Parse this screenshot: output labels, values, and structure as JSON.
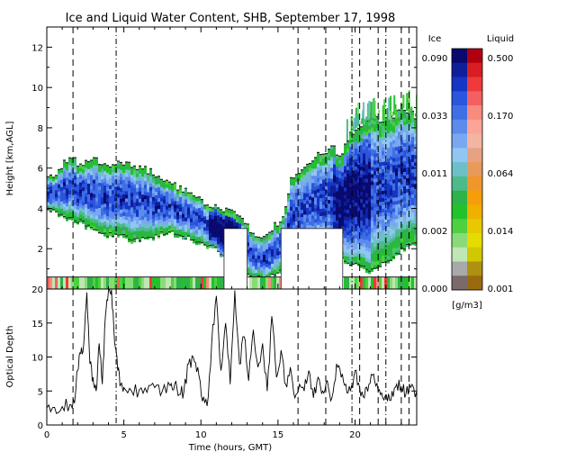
{
  "chart_data": [
    {
      "type": "heatmap",
      "title": "Ice and Liquid Water Content, SHB, September 17, 1998",
      "xlabel": "",
      "ylabel": "Height [km,AGL]",
      "xlim": [
        0,
        24
      ],
      "ylim": [
        0,
        13
      ],
      "x_ticks": [
        0,
        5,
        10,
        15,
        20
      ],
      "y_ticks": [
        2,
        4,
        6,
        8,
        10,
        12
      ],
      "cloud_top_km": [
        [
          0,
          5.5
        ],
        [
          0.5,
          5.6
        ],
        [
          1,
          6.2
        ],
        [
          1.5,
          6.5
        ],
        [
          2,
          6.2
        ],
        [
          3,
          6.4
        ],
        [
          4,
          6.2
        ],
        [
          5,
          6.2
        ],
        [
          6,
          6.0
        ],
        [
          7,
          5.7
        ],
        [
          8,
          5.2
        ],
        [
          9,
          4.8
        ],
        [
          10,
          4.3
        ],
        [
          11,
          4.0
        ],
        [
          12,
          3.8
        ],
        [
          12.8,
          3.2
        ],
        [
          13.3,
          2.8
        ],
        [
          13.8,
          2.5
        ],
        [
          14.5,
          3.0
        ],
        [
          15.2,
          3.4
        ],
        [
          15.8,
          5.5
        ],
        [
          16.5,
          6.0
        ],
        [
          17.5,
          6.7
        ],
        [
          18.5,
          7.0
        ],
        [
          19,
          6.5
        ],
        [
          19.5,
          7.5
        ],
        [
          20,
          8.0
        ],
        [
          21,
          8.5
        ],
        [
          22,
          8.3
        ],
        [
          23,
          9.0
        ],
        [
          24,
          8.5
        ]
      ],
      "cloud_base_km": [
        [
          0,
          4.0
        ],
        [
          1,
          3.6
        ],
        [
          2,
          3.4
        ],
        [
          3,
          3.0
        ],
        [
          4,
          2.7
        ],
        [
          5,
          2.6
        ],
        [
          6,
          2.5
        ],
        [
          7,
          2.7
        ],
        [
          8,
          2.8
        ],
        [
          9,
          2.6
        ],
        [
          10,
          2.4
        ],
        [
          11,
          2.0
        ],
        [
          12,
          1.2
        ],
        [
          13,
          0.8
        ],
        [
          14,
          0.5
        ],
        [
          15,
          0.8
        ],
        [
          16,
          1.8
        ],
        [
          17,
          2.0
        ],
        [
          18,
          1.8
        ],
        [
          19,
          1.5
        ],
        [
          20,
          1.2
        ],
        [
          21,
          1.0
        ],
        [
          22,
          1.4
        ],
        [
          23,
          2.0
        ],
        [
          24,
          2.5
        ]
      ],
      "blank_regions": [
        {
          "x": [
            11.5,
            13.0
          ],
          "y": [
            0,
            3.0
          ]
        },
        {
          "x": [
            15.2,
            19.2
          ],
          "y": [
            0,
            3.0
          ]
        }
      ],
      "vertical_markers_hours": [
        1.7,
        4.5,
        16.3,
        18.1,
        19.8,
        20.3,
        21.5,
        22.0,
        23.0,
        23.5
      ],
      "colorbar": {
        "ice_label": "Ice",
        "liquid_label": "Liquid",
        "units": "[g/m3]",
        "ice_ticks": [
          "0.090",
          "0.033",
          "0.011",
          "0.002",
          "0.000"
        ],
        "liquid_ticks": [
          "0.500",
          "0.170",
          "0.064",
          "0.014",
          "0.001"
        ],
        "ice_colors": [
          "#0a0a6e",
          "#0f1f9a",
          "#1535c4",
          "#2a55dc",
          "#3f6fe6",
          "#5b8cec",
          "#7aa8f0",
          "#8fc6f2",
          "#6dc0c8",
          "#4cba8a",
          "#2eb24a",
          "#22c22a",
          "#4fd040",
          "#88dc78",
          "#bfe6b4",
          "#a9a9a9",
          "#7a6a6a"
        ],
        "liquid_colors": [
          "#b00010",
          "#d81e22",
          "#ee3a3a",
          "#f46060",
          "#f88a7e",
          "#fca496",
          "#f4b4a2",
          "#e8a282",
          "#e89a5a",
          "#f0962a",
          "#f59e0a",
          "#f0b000",
          "#e8c800",
          "#e4dc00",
          "#d0c800",
          "#b09010",
          "#9a6a10"
        ]
      }
    },
    {
      "type": "line",
      "title": "",
      "xlabel": "Time (hours, GMT)",
      "ylabel": "Optical Depth",
      "xlim": [
        0,
        24
      ],
      "ylim": [
        0,
        20
      ],
      "x_ticks": [
        0,
        5,
        10,
        15,
        20
      ],
      "y_ticks": [
        0,
        5,
        10,
        15,
        20
      ],
      "series": [
        {
          "x": [
            0,
            0.5,
            1,
            1.5,
            1.8,
            2.0,
            2.2,
            2.4,
            2.6,
            2.8,
            3.0,
            3.2,
            3.4,
            3.6,
            3.8,
            4.0,
            4.2,
            4.4,
            4.6,
            4.8,
            5.0,
            5.5,
            6.0,
            6.5,
            7.0,
            7.5,
            8.0,
            8.3,
            8.6,
            8.9,
            9.2,
            9.5,
            9.8,
            10.1,
            10.4,
            10.7,
            11.0,
            11.3,
            11.6,
            11.9,
            12.2,
            12.5,
            12.8,
            13.1,
            13.4,
            13.7,
            14.0,
            14.3,
            14.6,
            14.9,
            15.2,
            15.5,
            15.8,
            16.1,
            16.4,
            16.7,
            17.0,
            17.3,
            17.6,
            17.9,
            18.2,
            18.5,
            18.8,
            19.1,
            19.4,
            19.7,
            20.0,
            20.3,
            20.6,
            20.9,
            21.2,
            21.5,
            21.8,
            22.1,
            22.4,
            22.7,
            23.0,
            23.3,
            23.6,
            24.0
          ],
          "values": [
            2.5,
            2.6,
            2.7,
            3.0,
            3.2,
            8.0,
            10.5,
            12.0,
            19.5,
            9.0,
            7.0,
            5.0,
            12.0,
            6.0,
            16.0,
            19.8,
            19.9,
            12.0,
            8.0,
            6.0,
            5.5,
            5.0,
            5.2,
            4.8,
            5.5,
            5.0,
            5.8,
            6.0,
            4.5,
            5.0,
            9.0,
            10.0,
            8.5,
            3.5,
            2.8,
            12.0,
            19.0,
            8.0,
            15.0,
            6.0,
            19.8,
            9.0,
            13.0,
            6.5,
            14.0,
            8.5,
            12.0,
            5.0,
            16.0,
            7.0,
            11.0,
            6.0,
            8.5,
            4.0,
            6.0,
            5.0,
            8.0,
            4.0,
            7.0,
            5.0,
            6.5,
            4.0,
            9.0,
            7.0,
            6.0,
            5.0,
            8.0,
            5.5,
            4.0,
            6.0,
            7.5,
            5.0,
            4.0,
            3.5,
            5.0,
            6.0,
            5.5,
            4.5,
            5.5,
            5.0
          ]
        }
      ]
    }
  ]
}
